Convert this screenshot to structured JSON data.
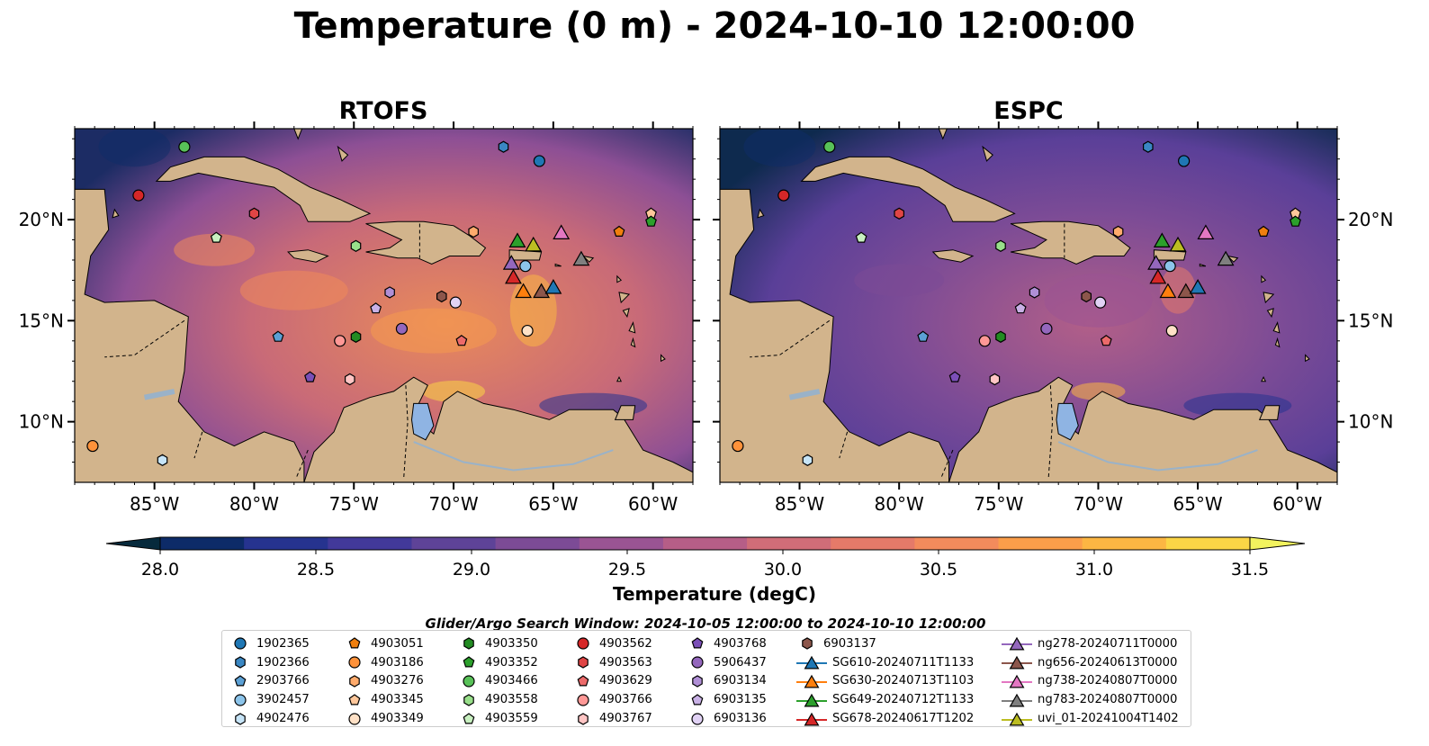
{
  "title": "Temperature (0 m) - 2024-10-10 12:00:00",
  "panels": [
    {
      "title": "RTOFS"
    },
    {
      "title": "ESPC"
    }
  ],
  "lon_ticks": [
    "85°W",
    "80°W",
    "75°W",
    "70°W",
    "65°W",
    "60°W"
  ],
  "lat_ticks": [
    "20°N",
    "15°N",
    "10°N"
  ],
  "colorbar": {
    "label": "Temperature (degC)",
    "ticks": [
      "28.0",
      "28.5",
      "29.0",
      "29.5",
      "30.0",
      "30.5",
      "31.0",
      "31.5"
    ],
    "range": [
      28.0,
      31.5
    ],
    "colors": [
      "#062a3c",
      "#0d2b68",
      "#26338f",
      "#42399a",
      "#5e4398",
      "#7c4b96",
      "#9a5493",
      "#b65e87",
      "#d06d78",
      "#e57a69",
      "#f38b5c",
      "#fb9e4a",
      "#fcb643",
      "#fbd546",
      "#f2f35e"
    ]
  },
  "search_window": "Glider/Argo Search Window: 2024-10-05 12:00:00 to 2024-10-10 12:00:00",
  "legend": [
    [
      {
        "label": "1902365",
        "marker": "circle",
        "color": "#1f77b4"
      },
      {
        "label": "1902366",
        "marker": "hexagon",
        "color": "#3a87c3"
      },
      {
        "label": "2903766",
        "marker": "pentagon",
        "color": "#5ba0d5"
      },
      {
        "label": "3902457",
        "marker": "circle",
        "color": "#8cc4ea"
      },
      {
        "label": "4902476",
        "marker": "hexagon",
        "color": "#c6e4f7"
      }
    ],
    [
      {
        "label": "4903051",
        "marker": "pentagon",
        "color": "#f07f0e"
      },
      {
        "label": "4903186",
        "marker": "circle",
        "color": "#ff923a"
      },
      {
        "label": "4903276",
        "marker": "hexagon",
        "color": "#ffab6c"
      },
      {
        "label": "4903345",
        "marker": "pentagon",
        "color": "#ffc79b"
      },
      {
        "label": "4903349",
        "marker": "circle",
        "color": "#ffe1c6"
      }
    ],
    [
      {
        "label": "4903350",
        "marker": "hexagon",
        "color": "#228b22"
      },
      {
        "label": "4903352",
        "marker": "pentagon",
        "color": "#2ca02c"
      },
      {
        "label": "4903466",
        "marker": "circle",
        "color": "#58c158"
      },
      {
        "label": "4903558",
        "marker": "hexagon",
        "color": "#98df8a"
      },
      {
        "label": "4903559",
        "marker": "pentagon",
        "color": "#c8f0c0"
      }
    ],
    [
      {
        "label": "4903562",
        "marker": "circle",
        "color": "#d62728"
      },
      {
        "label": "4903563",
        "marker": "hexagon",
        "color": "#e04545"
      },
      {
        "label": "4903629",
        "marker": "pentagon",
        "color": "#ec6a6a"
      },
      {
        "label": "4903766",
        "marker": "circle",
        "color": "#ff9896"
      },
      {
        "label": "4903767",
        "marker": "hexagon",
        "color": "#ffc5c4"
      }
    ],
    [
      {
        "label": "4903768",
        "marker": "pentagon",
        "color": "#7b4fb8"
      },
      {
        "label": "5906437",
        "marker": "circle",
        "color": "#9467bd"
      },
      {
        "label": "6903134",
        "marker": "hexagon",
        "color": "#b08fd6"
      },
      {
        "label": "6903135",
        "marker": "pentagon",
        "color": "#c9b1e6"
      },
      {
        "label": "6903136",
        "marker": "circle",
        "color": "#e1d2f5"
      }
    ],
    [
      {
        "label": "6903137",
        "marker": "hexagon",
        "color": "#8c564b"
      },
      {
        "label": "SG610-20240711T1133",
        "marker": "triangle",
        "color": "#1f77b4",
        "line": true
      },
      {
        "label": "SG630-20240713T1103",
        "marker": "triangle",
        "color": "#ff7f0e",
        "line": true
      },
      {
        "label": "SG649-20240712T1133",
        "marker": "triangle",
        "color": "#2ca02c",
        "line": true
      },
      {
        "label": "SG678-20240617T1202",
        "marker": "triangle",
        "color": "#d62728",
        "line": true
      }
    ],
    [
      {
        "label": "ng278-20240711T0000",
        "marker": "triangle",
        "color": "#9467bd",
        "line": true
      },
      {
        "label": "ng656-20240613T0000",
        "marker": "triangle",
        "color": "#8c564b",
        "line": true
      },
      {
        "label": "ng738-20240807T0000",
        "marker": "triangle",
        "color": "#e377c2",
        "line": true
      },
      {
        "label": "ng783-20240807T0000",
        "marker": "triangle",
        "color": "#7f7f7f",
        "line": true
      },
      {
        "label": "uvi_01-20241004T1402",
        "marker": "triangle",
        "color": "#bcbd22",
        "line": true
      }
    ]
  ],
  "map_extent": {
    "lon": [
      -89,
      -58
    ],
    "lat": [
      7,
      24.5
    ]
  },
  "land_color": "#d2b48c",
  "observations": [
    {
      "id": "4903466",
      "lon": -83.5,
      "lat": 23.6,
      "marker": "circle",
      "color": "#58c158"
    },
    {
      "id": "1902366",
      "lon": -67.5,
      "lat": 23.6,
      "marker": "hexagon",
      "color": "#3a87c3"
    },
    {
      "id": "1902365",
      "lon": -65.7,
      "lat": 22.9,
      "marker": "circle",
      "color": "#1f77b4"
    },
    {
      "id": "4903562",
      "lon": -85.8,
      "lat": 21.2,
      "marker": "circle",
      "color": "#d62728"
    },
    {
      "id": "4903563",
      "lon": -80.0,
      "lat": 20.3,
      "marker": "hexagon",
      "color": "#e04545"
    },
    {
      "id": "4903559",
      "lon": -81.9,
      "lat": 19.1,
      "marker": "pentagon",
      "color": "#c8f0c0"
    },
    {
      "id": "4903558",
      "lon": -74.9,
      "lat": 18.7,
      "marker": "hexagon",
      "color": "#98df8a"
    },
    {
      "id": "4903276",
      "lon": -69.0,
      "lat": 19.4,
      "marker": "hexagon",
      "color": "#ffab6c"
    },
    {
      "id": "4903051",
      "lon": -61.7,
      "lat": 19.4,
      "marker": "pentagon",
      "color": "#f07f0e"
    },
    {
      "id": "4903345",
      "lon": -60.1,
      "lat": 20.3,
      "marker": "pentagon",
      "color": "#ffc79b"
    },
    {
      "id": "4903352",
      "lon": -60.1,
      "lat": 19.9,
      "marker": "pentagon",
      "color": "#2ca02c"
    },
    {
      "id": "3902457",
      "lon": -66.4,
      "lat": 17.7,
      "marker": "circle",
      "color": "#8cc4ea"
    },
    {
      "id": "6903134",
      "lon": -73.2,
      "lat": 16.4,
      "marker": "hexagon",
      "color": "#b08fd6"
    },
    {
      "id": "6903137",
      "lon": -70.6,
      "lat": 16.2,
      "marker": "hexagon",
      "color": "#8c564b"
    },
    {
      "id": "6903136",
      "lon": -69.9,
      "lat": 15.9,
      "marker": "circle",
      "color": "#e1d2f5"
    },
    {
      "id": "6903135",
      "lon": -73.9,
      "lat": 15.6,
      "marker": "pentagon",
      "color": "#c9b1e6"
    },
    {
      "id": "5906437",
      "lon": -72.6,
      "lat": 14.6,
      "marker": "circle",
      "color": "#9467bd"
    },
    {
      "id": "4903349",
      "lon": -66.3,
      "lat": 14.5,
      "marker": "circle",
      "color": "#ffe1c6"
    },
    {
      "id": "2903766",
      "lon": -78.8,
      "lat": 14.2,
      "marker": "pentagon",
      "color": "#5ba0d5"
    },
    {
      "id": "4903766",
      "lon": -75.7,
      "lat": 14.0,
      "marker": "circle",
      "color": "#ff9896"
    },
    {
      "id": "4903350",
      "lon": -74.9,
      "lat": 14.2,
      "marker": "hexagon",
      "color": "#228b22"
    },
    {
      "id": "4903629",
      "lon": -69.6,
      "lat": 14.0,
      "marker": "pentagon",
      "color": "#ec6a6a"
    },
    {
      "id": "4903768",
      "lon": -77.2,
      "lat": 12.2,
      "marker": "pentagon",
      "color": "#7b4fb8"
    },
    {
      "id": "4903767",
      "lon": -75.2,
      "lat": 12.1,
      "marker": "hexagon",
      "color": "#ffc5c4"
    },
    {
      "id": "4903186",
      "lon": -88.1,
      "lat": 8.8,
      "marker": "circle",
      "color": "#ff923a"
    },
    {
      "id": "4902476",
      "lon": -84.6,
      "lat": 8.1,
      "marker": "hexagon",
      "color": "#c6e4f7"
    },
    {
      "id": "SG649-20240712T1133",
      "lon": -66.8,
      "lat": 18.9,
      "marker": "triangle",
      "color": "#2ca02c"
    },
    {
      "id": "uvi_01-20241004T1402",
      "lon": -66.0,
      "lat": 18.7,
      "marker": "triangle",
      "color": "#bcbd22"
    },
    {
      "id": "ng738-20240807T0000",
      "lon": -64.6,
      "lat": 19.3,
      "marker": "triangle",
      "color": "#e377c2"
    },
    {
      "id": "ng278-20240711T0000",
      "lon": -67.1,
      "lat": 17.8,
      "marker": "triangle",
      "color": "#9467bd"
    },
    {
      "id": "ng783-20240807T0000",
      "lon": -63.6,
      "lat": 18.0,
      "marker": "triangle",
      "color": "#7f7f7f"
    },
    {
      "id": "SG678-20240617T1202",
      "lon": -67.0,
      "lat": 17.1,
      "marker": "triangle",
      "color": "#d62728"
    },
    {
      "id": "SG630-20240713T1103",
      "lon": -66.5,
      "lat": 16.4,
      "marker": "triangle",
      "color": "#ff7f0e"
    },
    {
      "id": "ng656-20240613T0000",
      "lon": -65.6,
      "lat": 16.4,
      "marker": "triangle",
      "color": "#8c564b"
    },
    {
      "id": "SG610-20240711T1133",
      "lon": -65.0,
      "lat": 16.6,
      "marker": "triangle",
      "color": "#1f77b4"
    }
  ]
}
